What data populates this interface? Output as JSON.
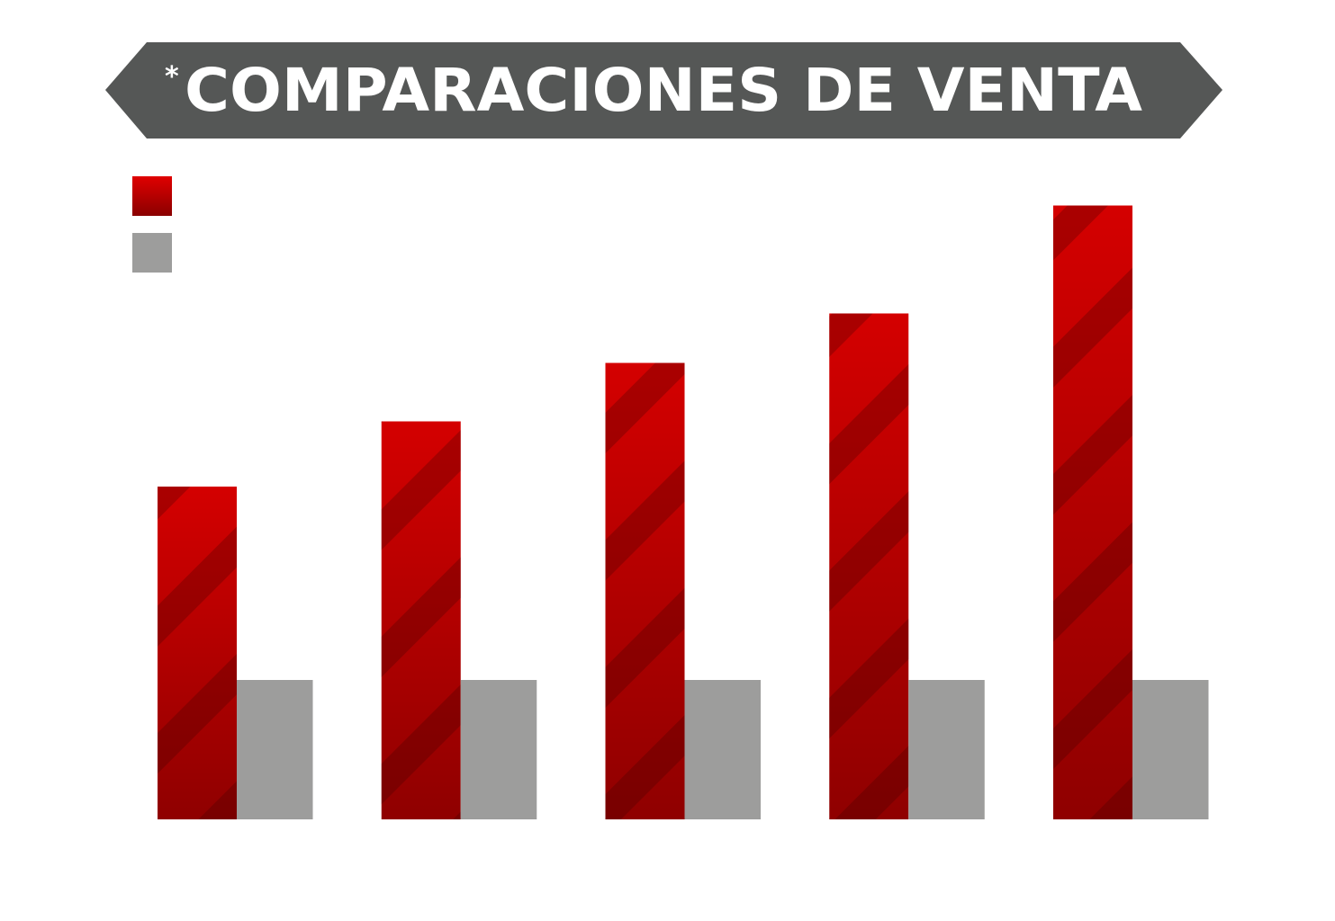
{
  "banner": {
    "asterisk": "*",
    "title": "COMPARACIONES DE VENTA"
  },
  "colors": {
    "banner": "#555756",
    "series_primary": "#cc0000",
    "series_primary_dark": "#8f0000",
    "series_secondary": "#9d9d9c",
    "title_text": "#ffffff"
  },
  "chart_data": {
    "type": "bar",
    "title": "COMPARACIONES DE VENTA",
    "categories": [
      "",
      "",
      "",
      "",
      ""
    ],
    "series": [
      {
        "values": [
          74,
          88.5,
          101.5,
          112.5,
          136.5
        ],
        "color": "#cc0000"
      },
      {
        "values": [
          31,
          31,
          31,
          31,
          31
        ],
        "color": "#9d9d9c"
      }
    ],
    "ylim": [
      0,
      140
    ],
    "grid": false,
    "axes_visible": false,
    "legend": "top-left",
    "legend_labels_visible": false
  }
}
